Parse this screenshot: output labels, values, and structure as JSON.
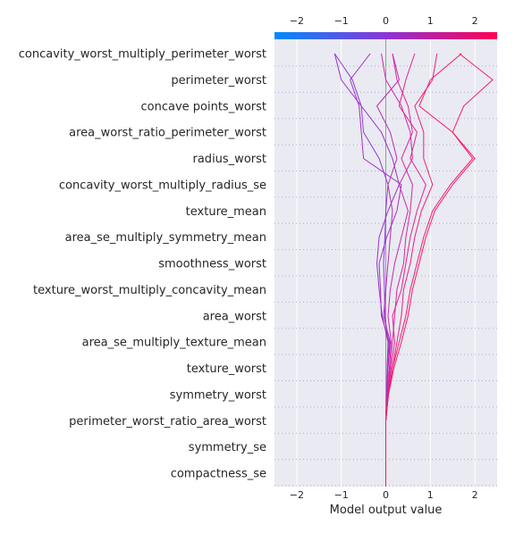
{
  "chart_data": {
    "type": "line",
    "subtype": "shap-decision-plot",
    "xlabel": "Model output value",
    "xlim": [
      -2.5,
      2.5
    ],
    "xticks": [
      -2,
      -1,
      0,
      1,
      2
    ],
    "xtick_labels": [
      "−2",
      "−1",
      "0",
      "1",
      "2"
    ],
    "base_value": 0,
    "features": [
      "concavity_worst_multiply_perimeter_worst",
      "perimeter_worst",
      "concave points_worst",
      "area_worst_ratio_perimeter_worst",
      "radius_worst",
      "concavity_worst_multiply_radius_se",
      "texture_mean",
      "area_se_multiply_symmetry_mean",
      "smoothness_worst",
      "texture_worst_multiply_concavity_mean",
      "area_worst",
      "area_se_multiply_texture_mean",
      "texture_worst",
      "symmetry_worst",
      "perimeter_worst_ratio_area_worst",
      "symmetry_se",
      "compactness_se"
    ],
    "colorbar": {
      "low_color": "#008bfb",
      "mid_color": "#8b34d6",
      "high_color": "#ff0052"
    },
    "grid": true,
    "series": [
      {
        "color": "#8b3cd0",
        "values": [
          0,
          0,
          0,
          0,
          0.02,
          0.03,
          0.06,
          -0.02,
          -0.03,
          -0.05,
          -0.02,
          0.0,
          0.05,
          -0.15,
          -0.5,
          -0.55,
          -0.75,
          -1.15
        ]
      },
      {
        "color": "#9a34c8",
        "values": [
          0,
          0,
          0,
          0,
          0.02,
          0.03,
          0.05,
          -0.08,
          -0.15,
          -0.2,
          -0.15,
          0.05,
          0.3,
          0.15,
          -0.1,
          -0.55,
          -1.0,
          -1.15
        ]
      },
      {
        "color": "#a530c0",
        "values": [
          0,
          0,
          0,
          0,
          0.03,
          0.05,
          0.08,
          -0.1,
          -0.12,
          -0.15,
          0.02,
          0.25,
          0.35,
          -0.5,
          -0.55,
          -0.6,
          -0.8,
          -0.35
        ]
      },
      {
        "color": "#b82db2",
        "values": [
          0,
          0,
          0,
          0,
          0.03,
          0.05,
          0.1,
          -0.05,
          0.0,
          0.05,
          0.1,
          0.15,
          0.05,
          0.25,
          0.1,
          -0.2,
          0.3,
          0.15
        ]
      },
      {
        "color": "#c82aa6",
        "values": [
          0,
          0,
          0,
          0,
          0.04,
          0.08,
          0.12,
          0.05,
          0.1,
          0.2,
          0.35,
          0.5,
          0.3,
          0.6,
          0.55,
          0.35,
          0.0,
          -0.1
        ]
      },
      {
        "color": "#d9279a",
        "values": [
          0,
          0,
          0,
          0,
          0.04,
          0.1,
          0.15,
          0.2,
          0.25,
          0.4,
          0.45,
          0.55,
          0.6,
          0.35,
          0.6,
          0.5,
          0.25,
          0.15
        ]
      },
      {
        "color": "#e2248c",
        "values": [
          0,
          0,
          0,
          0,
          0.05,
          0.12,
          0.2,
          0.15,
          0.35,
          0.45,
          0.55,
          0.7,
          0.9,
          0.55,
          0.7,
          0.3,
          0.45,
          0.65
        ]
      },
      {
        "color": "#eb2080",
        "values": [
          0,
          0,
          0,
          0,
          0.05,
          0.15,
          0.25,
          0.35,
          0.4,
          0.55,
          0.65,
          0.8,
          1.05,
          0.85,
          0.85,
          0.65,
          1.05,
          1.15
        ]
      },
      {
        "color": "#f31c72",
        "values": [
          0,
          0,
          0,
          0,
          0.06,
          0.15,
          0.3,
          0.45,
          0.55,
          0.7,
          0.85,
          1.05,
          1.45,
          1.95,
          1.5,
          1.75,
          2.4,
          1.65
        ]
      },
      {
        "color": "#fa1866",
        "values": [
          0,
          0,
          0,
          0,
          0.06,
          0.18,
          0.35,
          0.5,
          0.6,
          0.75,
          0.9,
          1.1,
          1.5,
          2.0,
          1.5,
          0.75,
          1.0,
          1.7
        ]
      }
    ]
  }
}
